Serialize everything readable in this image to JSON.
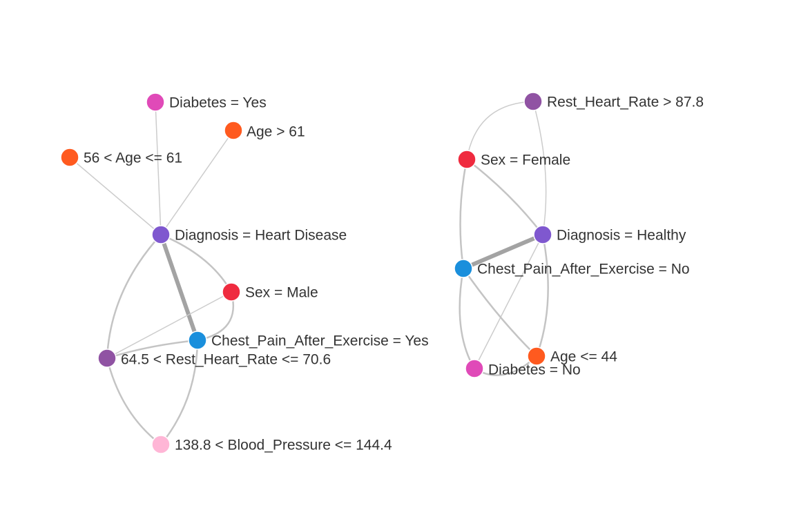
{
  "colors": {
    "diagnosis": "#7f58cf",
    "sex": "#ef2b3f",
    "age": "#ff5a1f",
    "diabetes": "#e04ab8",
    "chest_pain": "#1a8fdc",
    "rest_heart_rate": "#9053a3",
    "blood_pressure": "#ffb6d6",
    "edge": "#cccccc",
    "edge_strong": "#a3a3a3"
  },
  "nodes": {
    "diabetes_yes": {
      "label": "Diabetes = Yes",
      "category": "diabetes"
    },
    "age_gt_61": {
      "label": "Age > 61",
      "category": "age"
    },
    "age_56_61": {
      "label": "56 < Age <= 61",
      "category": "age"
    },
    "diagnosis_heart_disease": {
      "label": "Diagnosis = Heart Disease",
      "category": "diagnosis"
    },
    "sex_male": {
      "label": "Sex = Male",
      "category": "sex"
    },
    "chest_pain_yes": {
      "label": "Chest_Pain_After_Exercise = Yes",
      "category": "chest_pain"
    },
    "rest_hr_64_70": {
      "label": "64.5 < Rest_Heart_Rate <= 70.6",
      "category": "rest_heart_rate"
    },
    "bp_138_144": {
      "label": "138.8 < Blood_Pressure <= 144.4",
      "category": "blood_pressure"
    },
    "rest_hr_gt_87": {
      "label": "Rest_Heart_Rate > 87.8",
      "category": "rest_heart_rate"
    },
    "sex_female": {
      "label": "Sex = Female",
      "category": "sex"
    },
    "diagnosis_healthy": {
      "label": "Diagnosis = Healthy",
      "category": "diagnosis"
    },
    "chest_pain_no": {
      "label": "Chest_Pain_After_Exercise = No",
      "category": "chest_pain"
    },
    "age_le_44": {
      "label": "Age <= 44",
      "category": "age"
    },
    "diabetes_no": {
      "label": "Diabetes = No",
      "category": "diabetes"
    }
  }
}
